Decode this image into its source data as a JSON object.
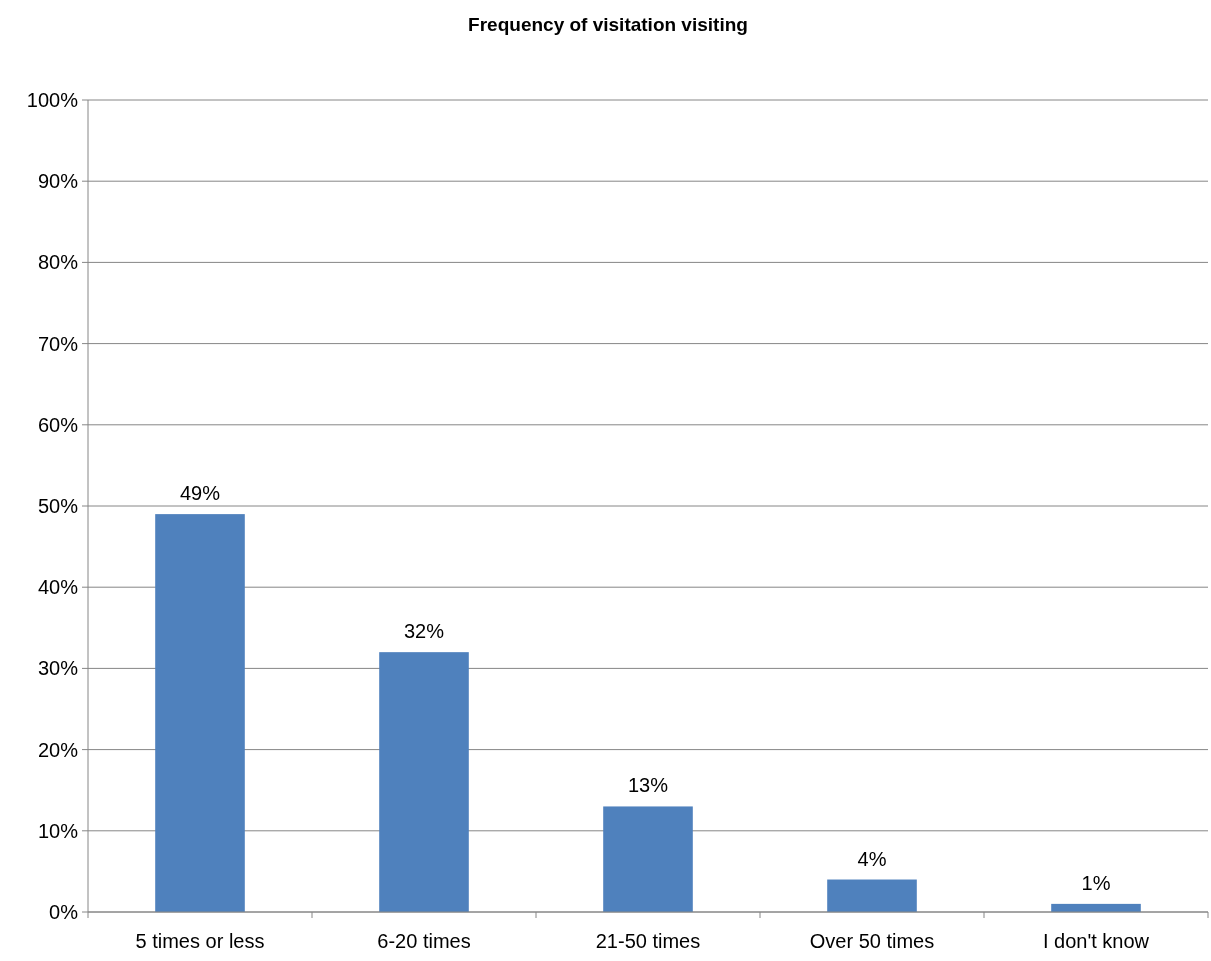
{
  "chart_data": {
    "type": "bar",
    "title": "Frequency of visitation visiting",
    "categories": [
      "5 times or less",
      "6-20 times",
      "21-50 times",
      "Over 50 times",
      "I don't know"
    ],
    "values": [
      49,
      32,
      13,
      4,
      1
    ],
    "value_labels": [
      "49%",
      "32%",
      "13%",
      "4%",
      "1%"
    ],
    "color": "#4f81bd",
    "ylim": [
      0,
      100
    ],
    "yticks": [
      {
        "value": 0,
        "label": "0%"
      },
      {
        "value": 10,
        "label": "10%"
      },
      {
        "value": 20,
        "label": "20%"
      },
      {
        "value": 30,
        "label": "30%"
      },
      {
        "value": 40,
        "label": "40%"
      },
      {
        "value": 50,
        "label": "50%"
      },
      {
        "value": 60,
        "label": "60%"
      },
      {
        "value": 70,
        "label": "70%"
      },
      {
        "value": 80,
        "label": "80%"
      },
      {
        "value": 90,
        "label": "90%"
      },
      {
        "value": 100,
        "label": "100%"
      }
    ],
    "grid": "y"
  }
}
